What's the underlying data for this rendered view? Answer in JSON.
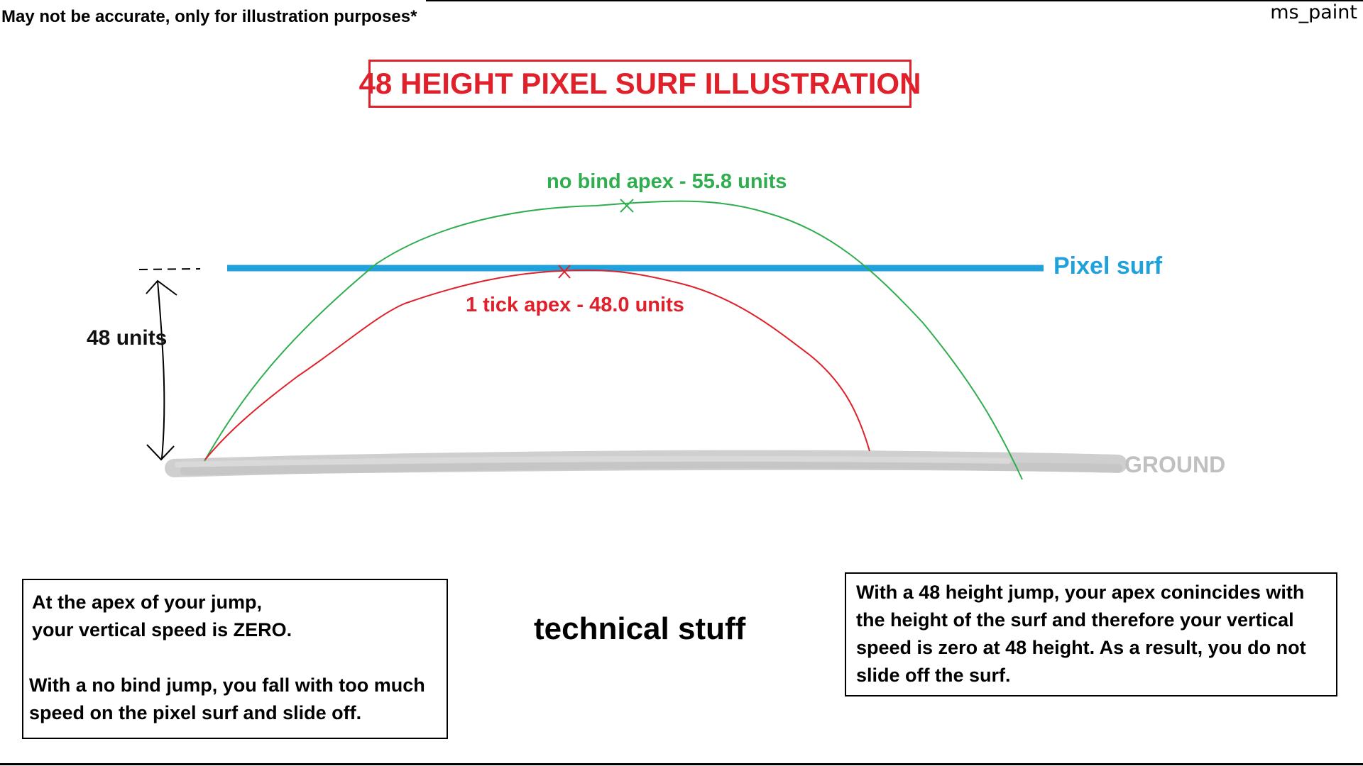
{
  "disclaimer": "May not be accurate, only for illustration purposes*",
  "app_label": "ms_paint",
  "title": "48 HEIGHT PIXEL SURF ILLUSTRATION",
  "labels": {
    "no_bind_apex": "no bind apex - 55.8 units",
    "one_tick_apex": "1 tick apex - 48.0 units",
    "pixel_surf": "Pixel surf",
    "height_units": "48 units",
    "ground": "GROUND",
    "technical": "technical stuff"
  },
  "left_box": {
    "line1": "At the apex of your jump,",
    "line2": "your vertical speed is ZERO.",
    "para2": "With a no bind jump, you fall with too much speed on the pixel surf and slide off."
  },
  "right_box": {
    "text": "With a 48 height jump, your apex conincides with the height of the surf and therefore your vertical speed is zero at 48 height. As a result, you do not slide off the surf."
  },
  "colors": {
    "green": "#2eae4f",
    "red": "#e0202a",
    "blue": "#1fa2dc",
    "ground": "#c8c8c8"
  }
}
